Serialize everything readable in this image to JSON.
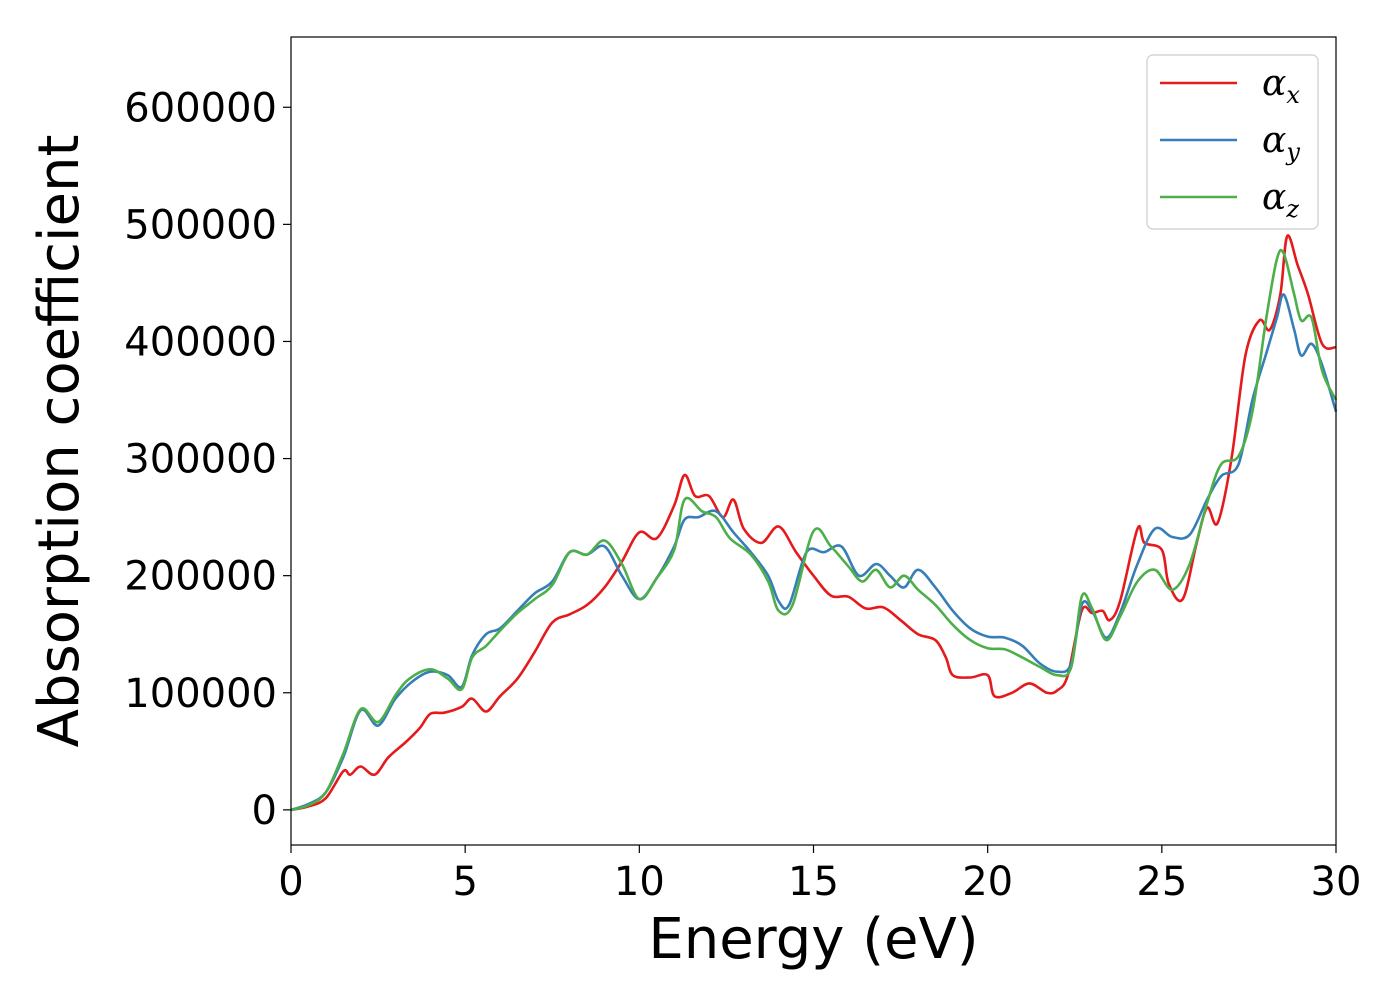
{
  "chart_data": {
    "type": "line",
    "title": "",
    "xlabel": "Energy (eV)",
    "ylabel": "Absorption coefficient",
    "xlim": [
      0,
      30
    ],
    "ylim": [
      -30000,
      660000
    ],
    "xticks": [
      0,
      5,
      10,
      15,
      20,
      25,
      30
    ],
    "yticks": [
      0,
      100000,
      200000,
      300000,
      400000,
      500000,
      600000
    ],
    "xtick_labels": [
      "0",
      "5",
      "10",
      "15",
      "20",
      "25",
      "30"
    ],
    "ytick_labels": [
      "0",
      "100000",
      "200000",
      "300000",
      "400000",
      "500000",
      "600000"
    ],
    "grid": false,
    "legend_position": "top-right",
    "series": [
      {
        "name": "α_x",
        "symbol": "α",
        "subscript": "x",
        "color": "#e41a1c",
        "points": [
          [
            0,
            0
          ],
          [
            0.5,
            3000
          ],
          [
            1,
            10000
          ],
          [
            1.5,
            33000
          ],
          [
            1.7,
            30000
          ],
          [
            2,
            37000
          ],
          [
            2.4,
            30000
          ],
          [
            2.8,
            45000
          ],
          [
            3.3,
            58000
          ],
          [
            3.7,
            70000
          ],
          [
            4,
            82000
          ],
          [
            4.4,
            83000
          ],
          [
            4.9,
            88000
          ],
          [
            5.2,
            95000
          ],
          [
            5.6,
            84000
          ],
          [
            6,
            97000
          ],
          [
            6.5,
            112000
          ],
          [
            7,
            135000
          ],
          [
            7.5,
            160000
          ],
          [
            8,
            167000
          ],
          [
            8.5,
            175000
          ],
          [
            9,
            190000
          ],
          [
            9.5,
            212000
          ],
          [
            10,
            237000
          ],
          [
            10.5,
            232000
          ],
          [
            11,
            260000
          ],
          [
            11.3,
            286000
          ],
          [
            11.6,
            268000
          ],
          [
            12,
            268000
          ],
          [
            12.4,
            250000
          ],
          [
            12.7,
            265000
          ],
          [
            13,
            240000
          ],
          [
            13.5,
            228000
          ],
          [
            14,
            242000
          ],
          [
            14.5,
            220000
          ],
          [
            15,
            200000
          ],
          [
            15.5,
            183000
          ],
          [
            16,
            182000
          ],
          [
            16.5,
            172000
          ],
          [
            17,
            173000
          ],
          [
            17.5,
            162000
          ],
          [
            18,
            150000
          ],
          [
            18.5,
            145000
          ],
          [
            18.8,
            130000
          ],
          [
            19,
            115000
          ],
          [
            19.5,
            113000
          ],
          [
            20,
            115000
          ],
          [
            20.2,
            97000
          ],
          [
            20.7,
            100000
          ],
          [
            21.2,
            108000
          ],
          [
            21.7,
            100000
          ],
          [
            22,
            102000
          ],
          [
            22.3,
            115000
          ],
          [
            22.7,
            170000
          ],
          [
            23,
            168000
          ],
          [
            23.3,
            170000
          ],
          [
            23.5,
            162000
          ],
          [
            23.8,
            178000
          ],
          [
            24.3,
            240000
          ],
          [
            24.5,
            228000
          ],
          [
            25,
            222000
          ],
          [
            25.2,
            193000
          ],
          [
            25.6,
            180000
          ],
          [
            26,
            228000
          ],
          [
            26.3,
            258000
          ],
          [
            26.6,
            245000
          ],
          [
            27,
            300000
          ],
          [
            27.4,
            388000
          ],
          [
            27.8,
            418000
          ],
          [
            28.1,
            410000
          ],
          [
            28.4,
            440000
          ],
          [
            28.6,
            490000
          ],
          [
            28.9,
            465000
          ],
          [
            29.2,
            440000
          ],
          [
            29.6,
            398000
          ],
          [
            30,
            395000
          ]
        ]
      },
      {
        "name": "α_y",
        "symbol": "α",
        "subscript": "y",
        "color": "#377eb8",
        "points": [
          [
            0,
            0
          ],
          [
            0.5,
            5000
          ],
          [
            1,
            15000
          ],
          [
            1.5,
            45000
          ],
          [
            2,
            85000
          ],
          [
            2.5,
            72000
          ],
          [
            3,
            95000
          ],
          [
            3.5,
            110000
          ],
          [
            4,
            118000
          ],
          [
            4.5,
            115000
          ],
          [
            4.9,
            105000
          ],
          [
            5.2,
            132000
          ],
          [
            5.6,
            150000
          ],
          [
            6,
            155000
          ],
          [
            6.5,
            170000
          ],
          [
            7,
            185000
          ],
          [
            7.5,
            195000
          ],
          [
            8,
            220000
          ],
          [
            8.5,
            218000
          ],
          [
            9,
            225000
          ],
          [
            9.5,
            200000
          ],
          [
            10,
            180000
          ],
          [
            10.5,
            198000
          ],
          [
            11,
            225000
          ],
          [
            11.3,
            248000
          ],
          [
            11.7,
            250000
          ],
          [
            12.2,
            255000
          ],
          [
            12.7,
            237000
          ],
          [
            13.2,
            220000
          ],
          [
            13.7,
            200000
          ],
          [
            14,
            178000
          ],
          [
            14.3,
            175000
          ],
          [
            14.8,
            220000
          ],
          [
            15.3,
            220000
          ],
          [
            15.8,
            225000
          ],
          [
            16.3,
            200000
          ],
          [
            16.8,
            210000
          ],
          [
            17.2,
            200000
          ],
          [
            17.6,
            190000
          ],
          [
            18,
            205000
          ],
          [
            18.5,
            190000
          ],
          [
            19,
            170000
          ],
          [
            19.5,
            155000
          ],
          [
            20,
            148000
          ],
          [
            20.5,
            147000
          ],
          [
            21,
            140000
          ],
          [
            21.5,
            125000
          ],
          [
            22,
            118000
          ],
          [
            22.4,
            125000
          ],
          [
            22.7,
            175000
          ],
          [
            23,
            170000
          ],
          [
            23.4,
            147000
          ],
          [
            23.8,
            168000
          ],
          [
            24.3,
            210000
          ],
          [
            24.8,
            240000
          ],
          [
            25.3,
            233000
          ],
          [
            25.8,
            235000
          ],
          [
            26.3,
            265000
          ],
          [
            26.7,
            285000
          ],
          [
            27.2,
            295000
          ],
          [
            27.6,
            350000
          ],
          [
            28,
            390000
          ],
          [
            28.3,
            420000
          ],
          [
            28.5,
            440000
          ],
          [
            28.8,
            410000
          ],
          [
            29,
            388000
          ],
          [
            29.3,
            398000
          ],
          [
            29.6,
            380000
          ],
          [
            30,
            340000
          ]
        ]
      },
      {
        "name": "α_z",
        "symbol": "α",
        "subscript": "z",
        "color": "#4daf4a",
        "points": [
          [
            0,
            0
          ],
          [
            0.5,
            4000
          ],
          [
            1,
            15000
          ],
          [
            1.5,
            48000
          ],
          [
            2,
            86000
          ],
          [
            2.5,
            75000
          ],
          [
            3,
            98000
          ],
          [
            3.4,
            112000
          ],
          [
            4,
            120000
          ],
          [
            4.5,
            112000
          ],
          [
            4.9,
            103000
          ],
          [
            5.2,
            130000
          ],
          [
            5.6,
            140000
          ],
          [
            6,
            153000
          ],
          [
            6.5,
            168000
          ],
          [
            7,
            180000
          ],
          [
            7.5,
            192000
          ],
          [
            8,
            220000
          ],
          [
            8.5,
            218000
          ],
          [
            9,
            230000
          ],
          [
            9.5,
            210000
          ],
          [
            10,
            180000
          ],
          [
            10.5,
            198000
          ],
          [
            11,
            222000
          ],
          [
            11.3,
            265000
          ],
          [
            11.8,
            255000
          ],
          [
            12.2,
            250000
          ],
          [
            12.6,
            232000
          ],
          [
            13.2,
            218000
          ],
          [
            13.7,
            195000
          ],
          [
            14,
            170000
          ],
          [
            14.4,
            175000
          ],
          [
            15,
            238000
          ],
          [
            15.5,
            225000
          ],
          [
            16,
            208000
          ],
          [
            16.4,
            195000
          ],
          [
            16.8,
            205000
          ],
          [
            17.2,
            190000
          ],
          [
            17.6,
            200000
          ],
          [
            18,
            188000
          ],
          [
            18.5,
            175000
          ],
          [
            19,
            158000
          ],
          [
            19.5,
            145000
          ],
          [
            20,
            138000
          ],
          [
            20.5,
            137000
          ],
          [
            21,
            130000
          ],
          [
            21.5,
            122000
          ],
          [
            22,
            115000
          ],
          [
            22.4,
            122000
          ],
          [
            22.7,
            182000
          ],
          [
            23,
            172000
          ],
          [
            23.4,
            145000
          ],
          [
            23.8,
            165000
          ],
          [
            24.3,
            195000
          ],
          [
            24.8,
            205000
          ],
          [
            25.3,
            188000
          ],
          [
            25.8,
            210000
          ],
          [
            26.3,
            262000
          ],
          [
            26.7,
            295000
          ],
          [
            27.2,
            302000
          ],
          [
            27.6,
            340000
          ],
          [
            28,
            420000
          ],
          [
            28.3,
            470000
          ],
          [
            28.5,
            475000
          ],
          [
            28.8,
            440000
          ],
          [
            29,
            418000
          ],
          [
            29.3,
            420000
          ],
          [
            29.6,
            375000
          ],
          [
            30,
            350000
          ]
        ]
      }
    ]
  }
}
